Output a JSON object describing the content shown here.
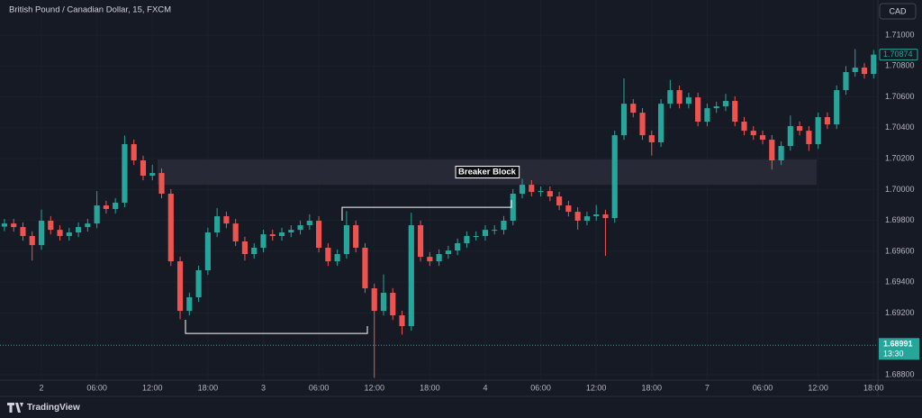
{
  "chart_data": {
    "type": "candlestick",
    "title": "British Pound / Canadian Dollar, 15, FXCM",
    "currency": "CAD",
    "brand": "TradingView",
    "up_color": "#26a69a",
    "down_color": "#ef5350",
    "grid": true,
    "x": [
      -4,
      -3,
      -2,
      -1,
      0,
      1,
      2,
      3,
      4,
      5,
      6,
      7,
      8,
      9,
      10,
      11,
      12,
      13,
      14,
      15,
      16,
      17,
      18,
      19,
      20,
      21,
      22,
      23,
      24,
      25,
      26,
      27,
      28,
      29,
      30,
      31,
      32,
      33,
      34,
      35,
      36,
      37,
      38,
      39,
      40,
      41,
      42,
      43,
      44,
      45,
      46,
      47,
      48,
      49,
      50,
      51,
      52,
      53,
      54,
      55,
      56,
      57,
      58,
      59,
      60,
      61,
      62,
      63,
      64,
      65,
      66,
      67,
      68,
      69,
      70,
      71,
      72,
      73,
      74,
      75,
      76,
      77,
      78,
      79,
      80,
      81,
      82,
      83,
      84,
      85,
      86,
      87,
      88,
      89,
      90
    ],
    "open": [
      1.6976,
      1.6978,
      1.69757,
      1.69699,
      1.6964,
      1.69798,
      1.69739,
      1.69699,
      1.69722,
      1.69757,
      1.6978,
      1.69897,
      1.69874,
      1.69915,
      1.70294,
      1.70189,
      1.7009,
      1.70107,
      1.69973,
      1.69535,
      1.69214,
      1.69302,
      1.69477,
      1.69722,
      1.69827,
      1.6978,
      1.69664,
      1.69582,
      1.69623,
      1.6971,
      1.69699,
      1.69722,
      1.69739,
      1.69769,
      1.69798,
      1.69623,
      1.69535,
      1.69582,
      1.69769,
      1.69623,
      1.6936,
      1.69214,
      1.69331,
      1.69185,
      1.69115,
      1.69769,
      1.69564,
      1.69535,
      1.69582,
      1.69605,
      1.69652,
      1.69699,
      1.69699,
      1.69739,
      1.69739,
      1.69798,
      1.69973,
      1.70031,
      1.69985,
      1.6999,
      1.69955,
      1.69897,
      1.69856,
      1.69798,
      1.69827,
      1.69839,
      1.69815,
      1.70352,
      1.70556,
      1.70498,
      1.70352,
      1.70306,
      1.70556,
      1.70644,
      1.70556,
      1.70597,
      1.7044,
      1.70527,
      1.70539,
      1.70574,
      1.7044,
      1.70381,
      1.70352,
      1.70323,
      1.70189,
      1.70282,
      1.70411,
      1.70381,
      1.70294,
      1.70469,
      1.70422,
      1.70644,
      1.70761,
      1.7079,
      1.70749
    ],
    "high": [
      1.6981,
      1.6981,
      1.69787,
      1.69729,
      1.6987,
      1.69828,
      1.69769,
      1.69752,
      1.69787,
      1.6981,
      1.6999,
      1.69927,
      1.69945,
      1.7035,
      1.70324,
      1.70219,
      1.7016,
      1.70137,
      1.70003,
      1.69565,
      1.69332,
      1.69507,
      1.69752,
      1.6988,
      1.69857,
      1.6981,
      1.69694,
      1.69653,
      1.6974,
      1.6974,
      1.69752,
      1.69769,
      1.69799,
      1.6984,
      1.69828,
      1.69653,
      1.69612,
      1.6986,
      1.69799,
      1.69653,
      1.6939,
      1.6945,
      1.69361,
      1.69215,
      1.6985,
      1.69799,
      1.69594,
      1.69612,
      1.69635,
      1.69682,
      1.69729,
      1.69729,
      1.69769,
      1.69769,
      1.69828,
      1.70003,
      1.7007,
      1.70061,
      1.7002,
      1.7002,
      1.69985,
      1.69927,
      1.69886,
      1.69857,
      1.699,
      1.69869,
      1.70382,
      1.7072,
      1.70586,
      1.70528,
      1.70382,
      1.70586,
      1.7071,
      1.70674,
      1.70627,
      1.70627,
      1.70557,
      1.70569,
      1.7062,
      1.70604,
      1.7047,
      1.70411,
      1.70382,
      1.70353,
      1.70312,
      1.7048,
      1.70441,
      1.70411,
      1.70499,
      1.70499,
      1.70674,
      1.708,
      1.7091,
      1.7082,
      1.70904
    ],
    "low": [
      1.6973,
      1.69727,
      1.69669,
      1.6954,
      1.6961,
      1.69709,
      1.69669,
      1.69669,
      1.69692,
      1.69727,
      1.6975,
      1.69844,
      1.69844,
      1.69885,
      1.70159,
      1.7006,
      1.7006,
      1.69943,
      1.69505,
      1.6916,
      1.69184,
      1.69272,
      1.69447,
      1.69692,
      1.6975,
      1.69634,
      1.6954,
      1.69552,
      1.69593,
      1.69669,
      1.69669,
      1.69692,
      1.69709,
      1.69739,
      1.69593,
      1.69505,
      1.69505,
      1.69552,
      1.69593,
      1.6933,
      1.6878,
      1.69184,
      1.69155,
      1.6906,
      1.69085,
      1.69534,
      1.69505,
      1.69505,
      1.69552,
      1.69575,
      1.69622,
      1.69669,
      1.69669,
      1.69709,
      1.69709,
      1.69768,
      1.69943,
      1.69955,
      1.69955,
      1.69925,
      1.69867,
      1.69826,
      1.6974,
      1.69768,
      1.69797,
      1.6957,
      1.69785,
      1.70322,
      1.70468,
      1.70322,
      1.7022,
      1.70276,
      1.70526,
      1.70526,
      1.70526,
      1.7041,
      1.7041,
      1.70497,
      1.70509,
      1.7041,
      1.70351,
      1.70322,
      1.70293,
      1.7013,
      1.70159,
      1.70252,
      1.70351,
      1.7025,
      1.70264,
      1.70392,
      1.70392,
      1.70614,
      1.70731,
      1.70719,
      1.70719
    ],
    "close": [
      1.6978,
      1.69757,
      1.69699,
      1.6964,
      1.69798,
      1.69739,
      1.69699,
      1.69722,
      1.69757,
      1.6978,
      1.69897,
      1.69874,
      1.69915,
      1.70294,
      1.70189,
      1.7009,
      1.70107,
      1.69973,
      1.69535,
      1.69214,
      1.69302,
      1.69477,
      1.69722,
      1.69827,
      1.6978,
      1.69664,
      1.69582,
      1.69623,
      1.6971,
      1.69699,
      1.69722,
      1.69739,
      1.69769,
      1.69798,
      1.69623,
      1.69535,
      1.69582,
      1.69769,
      1.69623,
      1.6936,
      1.69214,
      1.69331,
      1.69185,
      1.69115,
      1.69769,
      1.69564,
      1.69535,
      1.69582,
      1.69605,
      1.69652,
      1.69699,
      1.69699,
      1.69739,
      1.69739,
      1.69798,
      1.69973,
      1.70031,
      1.69985,
      1.6999,
      1.69955,
      1.69897,
      1.69856,
      1.69798,
      1.69827,
      1.69839,
      1.69815,
      1.70352,
      1.70556,
      1.70498,
      1.70352,
      1.70306,
      1.70556,
      1.70644,
      1.70556,
      1.70597,
      1.7044,
      1.70527,
      1.70539,
      1.70574,
      1.7044,
      1.70381,
      1.70352,
      1.70323,
      1.70189,
      1.70282,
      1.70411,
      1.70381,
      1.70294,
      1.70469,
      1.70422,
      1.70644,
      1.70761,
      1.7079,
      1.70749,
      1.70874
    ],
    "last_label": "1.70874",
    "price_line": {
      "value": 1.68991,
      "time": "13:30",
      "color": "#26a69a"
    },
    "xlim": [
      -4.48,
      90.46
    ],
    "ylim": [
      1.68765,
      1.71228
    ],
    "xticks": [
      {
        "value": 0,
        "label": "2"
      },
      {
        "value": 6,
        "label": "06:00"
      },
      {
        "value": 12,
        "label": "12:00"
      },
      {
        "value": 18,
        "label": "18:00"
      },
      {
        "value": 24,
        "label": "3"
      },
      {
        "value": 30,
        "label": "06:00"
      },
      {
        "value": 36,
        "label": "12:00"
      },
      {
        "value": 42,
        "label": "18:00"
      },
      {
        "value": 48,
        "label": "4"
      },
      {
        "value": 54,
        "label": "06:00"
      },
      {
        "value": 60,
        "label": "12:00"
      },
      {
        "value": 66,
        "label": "18:00"
      },
      {
        "value": 72,
        "label": "7"
      },
      {
        "value": 78,
        "label": "06:00"
      },
      {
        "value": 84,
        "label": "12:00"
      },
      {
        "value": 90,
        "label": "18:00"
      }
    ],
    "yticks": [
      {
        "value": 1.71,
        "label": "1.71000"
      },
      {
        "value": 1.708,
        "label": "1.70800"
      },
      {
        "value": 1.706,
        "label": "1.70600"
      },
      {
        "value": 1.704,
        "label": "1.70400"
      },
      {
        "value": 1.702,
        "label": "1.70200"
      },
      {
        "value": 1.7,
        "label": "1.70000"
      },
      {
        "value": 1.698,
        "label": "1.69800"
      },
      {
        "value": 1.696,
        "label": "1.69600"
      },
      {
        "value": 1.694,
        "label": "1.69400"
      },
      {
        "value": 1.692,
        "label": "1.69200"
      },
      {
        "value": 1.688,
        "label": "1.68800"
      }
    ],
    "zone": {
      "label": "Breaker Block",
      "x": [
        12.56,
        83.84
      ],
      "y": [
        1.70031,
        1.70195
      ]
    },
    "lines": [
      {
        "x": [
          15.58,
          15.58,
          35.25,
          35.25
        ],
        "y": [
          1.69156,
          1.69068,
          1.69068,
          1.69115
        ]
      },
      {
        "x": [
          32.52,
          32.52,
          50.83,
          50.83
        ],
        "y": [
          1.69798,
          1.69885,
          1.69885,
          1.69932
        ]
      }
    ]
  }
}
